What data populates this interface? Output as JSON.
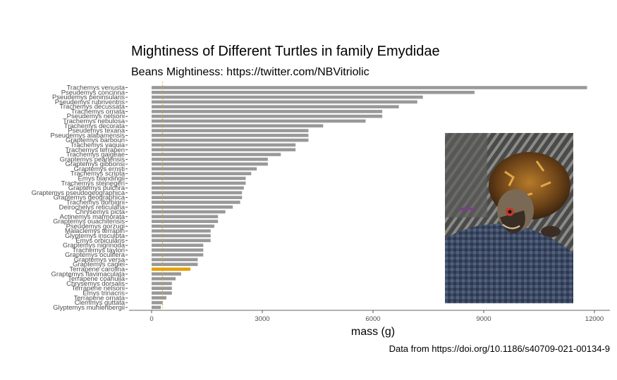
{
  "chart_data": {
    "type": "bar",
    "orientation": "horizontal",
    "title": "Mightiness of Different Turtles in family Emydidae",
    "subtitle": "Beans Mightiness: https://twitter.com/NBVitriolic",
    "caption": "Data from https://doi.org/10.1186/s40709-021-00134-9",
    "xlabel": "mass (g)",
    "ylabel": "",
    "xlim": [
      0,
      12000
    ],
    "xticks": [
      0,
      3000,
      6000,
      9000,
      12000
    ],
    "grid": false,
    "reference_line": 300,
    "colors": {
      "bar": "#999999",
      "highlight": "#E69F00",
      "reference": "#E69F00"
    },
    "highlight": "Terrapene carolina",
    "categories": [
      "Trachemys venusta",
      "Pseudemys concinna",
      "Pseudemys peninsularis",
      "Pseudemys rubriventris",
      "Trachemys decussata",
      "Trachemys ornata",
      "Pseudemys nelsoni",
      "Trachemys nebulosa",
      "Trachemys decorata",
      "Pseudemys texana",
      "Pseudemys alabamensis",
      "Graptemys barbouri",
      "Trachemys yaquia",
      "Trachemys terrapen",
      "Trachemys gaigeae",
      "Graptemys pearlensis",
      "Graptemys gibbonsi",
      "Graptemys ernsti",
      "Trachemys scripta",
      "Emys blandingii",
      "Trachemys stejnegeri",
      "Graptemys pulchra",
      "Graptemys pseudogeographica",
      "Graptemys geographica",
      "Trachemys dorbigni",
      "Deirochelys reticularia",
      "Chrysemys picta",
      "Actinemys marmorata",
      "Graptemys ouachitensis",
      "Pseudemys gorzugi",
      "Malaclemys terrapin",
      "Glyptemys insculpta",
      "Emys orbicularis",
      "Graptemys nigrinoda",
      "Trachemys taylori",
      "Graptemys oculifera",
      "Graptemys versa",
      "Graptemys caglei",
      "Terrapene carolina",
      "Graptemys flavimaculata",
      "Terrapene coahuila",
      "Chrysemys dorsalis",
      "Terrapene nelsoni",
      "Emys trinacris",
      "Terrapene ornata",
      "Clemmys guttata",
      "Glyptemys muhlenbergii"
    ],
    "values": [
      11800,
      8750,
      7350,
      7200,
      6700,
      6250,
      6250,
      5800,
      4650,
      4250,
      4250,
      4250,
      3900,
      3900,
      3500,
      3150,
      3150,
      2850,
      2700,
      2550,
      2550,
      2500,
      2450,
      2450,
      2400,
      2200,
      2000,
      1800,
      1800,
      1700,
      1600,
      1600,
      1600,
      1400,
      1400,
      1400,
      1250,
      1250,
      1050,
      800,
      650,
      550,
      550,
      550,
      400,
      300,
      250
    ]
  }
}
